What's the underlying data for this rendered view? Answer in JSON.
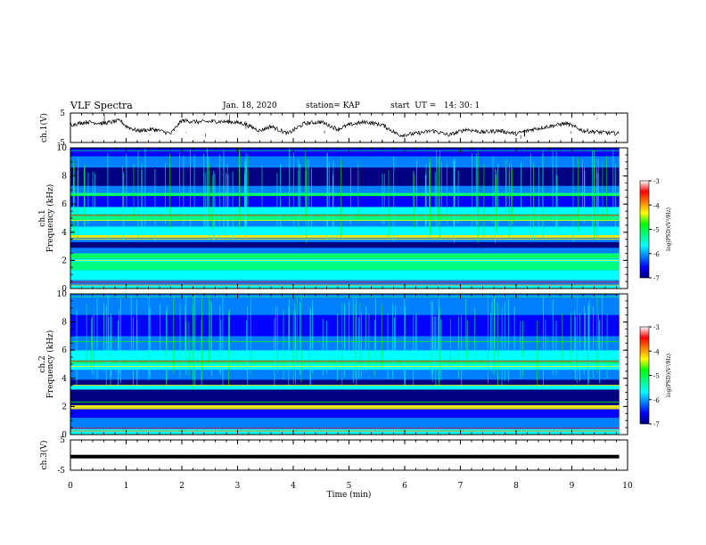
{
  "header": {
    "title": "VLF Spectra",
    "date": "Jan. 18, 2020",
    "station": "station= KAP",
    "start": "start  UT =   14: 30: 1"
  },
  "chart_data": [
    {
      "type": "line",
      "panel": "ch1-waveform",
      "ylabel": "ch.1(V)",
      "ylim": [
        -5,
        5
      ],
      "yticks": [
        "5",
        "-5"
      ],
      "x_range_min": [
        0,
        9.85
      ],
      "description_values": {
        "x": [
          0,
          0.3,
          0.6,
          0.9,
          1.0,
          1.2,
          1.5,
          1.8,
          2.0,
          2.3,
          2.6,
          2.9,
          3.1,
          3.4,
          3.6,
          3.9,
          4.2,
          4.5,
          4.8,
          5.0,
          5.3,
          5.6,
          5.9,
          6.2,
          6.5,
          6.8,
          7.1,
          7.4,
          7.7,
          8.0,
          8.3,
          8.6,
          8.9,
          9.2,
          9.5,
          9.85
        ],
        "y": [
          1.0,
          2.0,
          1.5,
          2.5,
          0.5,
          -1.0,
          -0.5,
          -2.0,
          2.5,
          2.0,
          2.2,
          2.0,
          1.5,
          -1.0,
          0.5,
          -2.0,
          1.5,
          2.0,
          -0.5,
          1.0,
          2.0,
          1.0,
          -2.5,
          -2.0,
          -1.0,
          -2.5,
          -0.5,
          -1.5,
          -1.0,
          -2.0,
          -0.5,
          0.5,
          1.5,
          -1.0,
          -1.5,
          -2.0
        ]
      }
    },
    {
      "type": "heatmap",
      "panel": "ch1-spectrogram",
      "ylabel": "ch.1\nFrequency (kHz)",
      "ylim": [
        0,
        10
      ],
      "yticks": [
        "0",
        "2",
        "4",
        "6",
        "8",
        "10"
      ],
      "colorbar": {
        "label": "log(PSD)(V²/Hz)",
        "range": [
          -7,
          -3
        ],
        "ticks": [
          "-3",
          "-4",
          "-5",
          "-6",
          "-7"
        ]
      }
    },
    {
      "type": "heatmap",
      "panel": "ch2-spectrogram",
      "ylabel": "ch.2\nFrequency (kHz)",
      "ylim": [
        0,
        10
      ],
      "yticks": [
        "0",
        "2",
        "4",
        "6",
        "8",
        "10"
      ],
      "colorbar": {
        "label": "log(PSD)(V²/Hz)",
        "range": [
          -7,
          -3
        ],
        "ticks": [
          "-3",
          "-4",
          "-5",
          "-6",
          "-7"
        ]
      }
    },
    {
      "type": "line",
      "panel": "ch3-waveform",
      "ylabel": "ch.3(V)",
      "ylim": [
        -5,
        5
      ],
      "yticks": [
        "5",
        "-5"
      ],
      "x": [
        0,
        9.85
      ],
      "y": [
        -0.5,
        -0.5
      ]
    }
  ],
  "xaxis": {
    "label": "Time  (min)",
    "range": [
      0,
      10
    ],
    "ticks": [
      "0",
      "1",
      "2",
      "3",
      "4",
      "5",
      "6",
      "7",
      "8",
      "9",
      "10"
    ]
  },
  "colors": {
    "colormap": [
      "#000080",
      "#0000ff",
      "#0080ff",
      "#00ffff",
      "#00ff80",
      "#00ff00",
      "#ffff00",
      "#ff8000",
      "#ff0000"
    ],
    "trace": "#000000"
  }
}
